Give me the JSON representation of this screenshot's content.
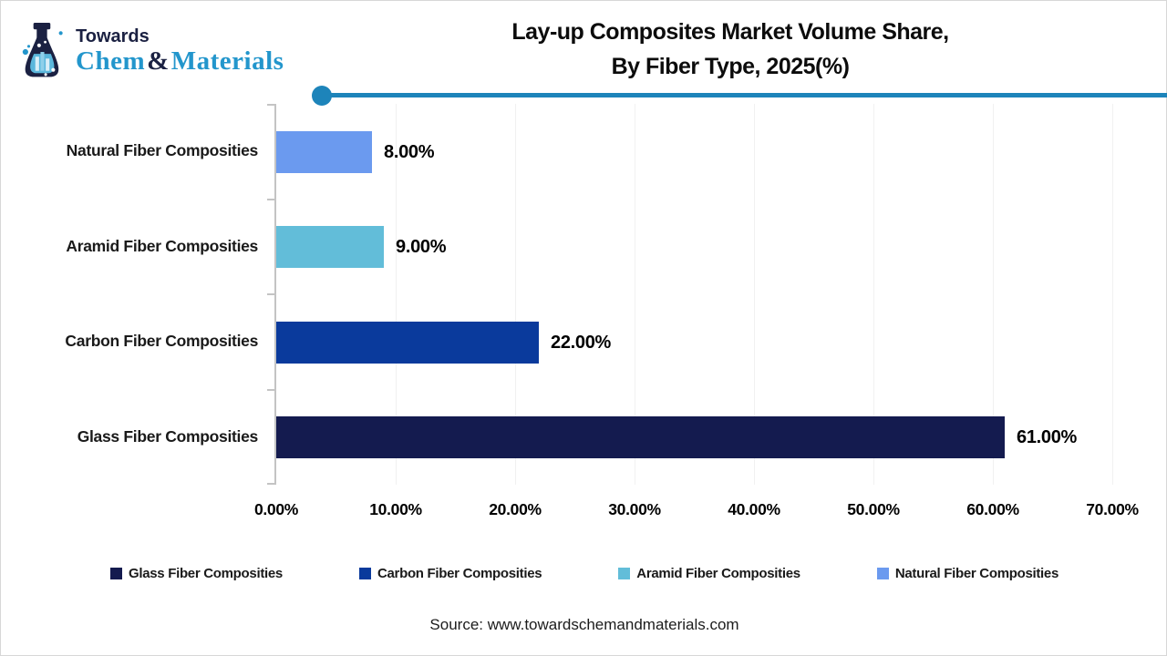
{
  "logo": {
    "brand_top": "Towards",
    "brand_word1": "Chem",
    "brand_amp": "&",
    "brand_word2": "Materials"
  },
  "header": {
    "title_line1": "Lay-up Composites Market Volume Share,",
    "title_line2": "By Fiber Type, 2025(%)"
  },
  "chart_data": {
    "type": "bar",
    "orientation": "horizontal",
    "title": "Lay-up Composites Market Volume Share, By Fiber Type, 2025(%)",
    "categories": [
      "Natural Fiber Composities",
      "Aramid Fiber Composities",
      "Carbon Fiber Composities",
      "Glass Fiber Composities"
    ],
    "values": [
      8,
      9,
      22,
      61
    ],
    "value_labels": [
      "8.00%",
      "9.00%",
      "22.00%",
      "61.00%"
    ],
    "colors": [
      "#6b9aef",
      "#62bdd9",
      "#0a3a9c",
      "#141b4f"
    ],
    "xlim": [
      0,
      70
    ],
    "xticks": [
      "0.00%",
      "10.00%",
      "20.00%",
      "30.00%",
      "40.00%",
      "50.00%",
      "60.00%",
      "70.00%"
    ],
    "grid": "faint-vertical",
    "legend_position": "bottom"
  },
  "legend": {
    "items": [
      {
        "label": "Glass Fiber Composities",
        "color": "#141b4f"
      },
      {
        "label": "Carbon Fiber Composities",
        "color": "#0a3a9c"
      },
      {
        "label": "Aramid Fiber Composities",
        "color": "#62bdd9"
      },
      {
        "label": "Natural Fiber Composities",
        "color": "#6b9aef"
      }
    ]
  },
  "footer": {
    "source": "Source: www.towardschemandmaterials.com"
  },
  "colors": {
    "accent_rule": "#1d84ba"
  }
}
